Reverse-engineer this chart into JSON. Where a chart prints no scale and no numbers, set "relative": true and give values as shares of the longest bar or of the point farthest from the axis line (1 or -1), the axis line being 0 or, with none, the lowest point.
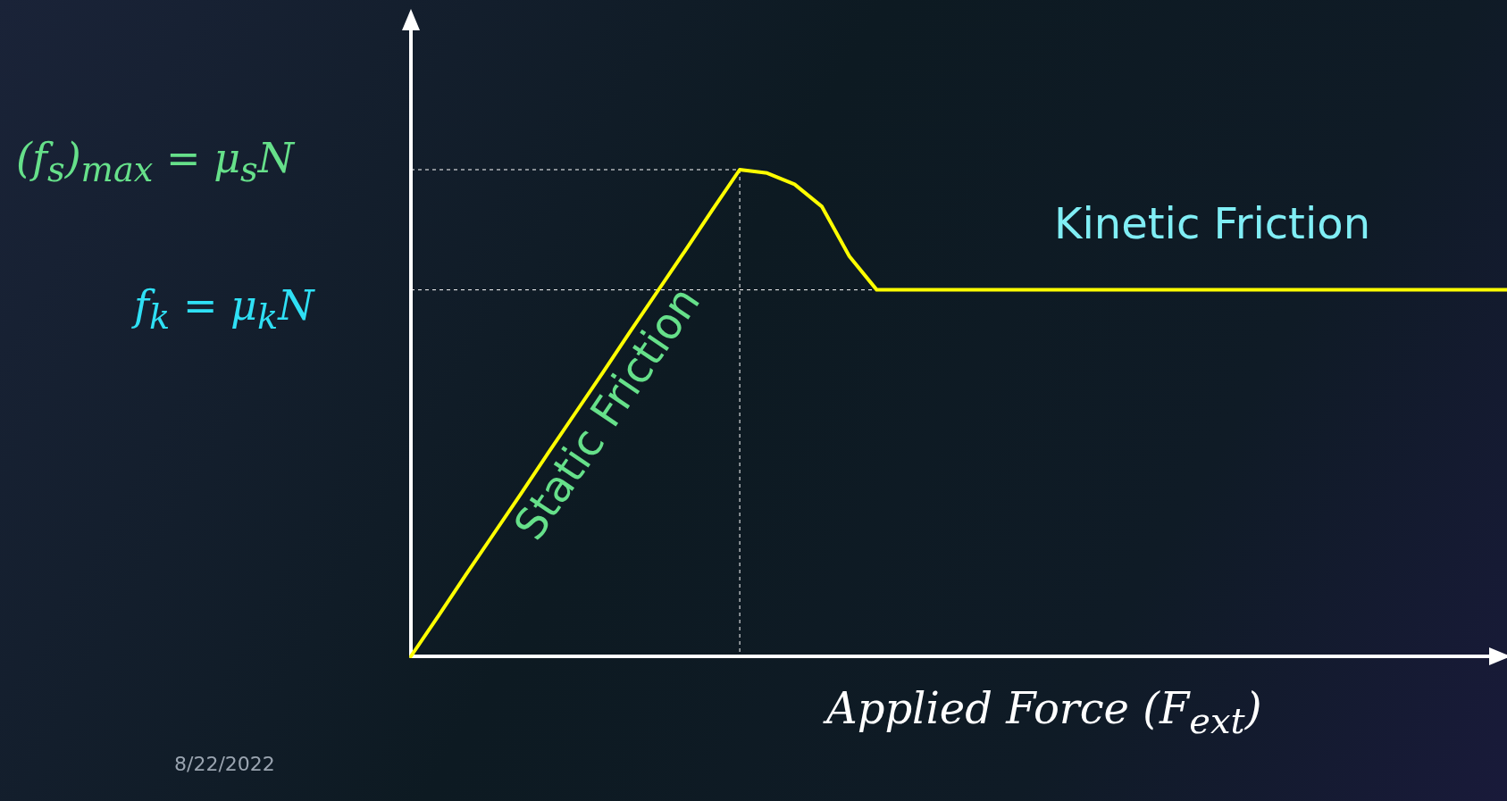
{
  "chart_data": {
    "type": "line",
    "relative": true,
    "tick_labels": false,
    "marker": "none",
    "line_style": "solid",
    "xlabel": "Applied Force (F$_{ext}$)",
    "categories": [
      null,
      null,
      null,
      null,
      null,
      null,
      null,
      null,
      null,
      null,
      null,
      null,
      null,
      null,
      null,
      null,
      null,
      null,
      null,
      null,
      null,
      null,
      null,
      null,
      null,
      null,
      null,
      null,
      null,
      null,
      null,
      null,
      null,
      null,
      null,
      null,
      null,
      null,
      null,
      null,
      null
    ],
    "series": [
      {
        "color": "#ffff00",
        "values": [
          0,
          0.083,
          0.167,
          0.25,
          0.333,
          0.417,
          0.5,
          0.583,
          0.667,
          0.75,
          0.833,
          0.917,
          1,
          0.993,
          0.97,
          0.924,
          0.822,
          0.753,
          0.753,
          0.753,
          0.753,
          0.753,
          0.753,
          0.753,
          0.753,
          0.753,
          0.753,
          0.753,
          0.753,
          0.753,
          0.753,
          0.753,
          0.753,
          0.753,
          0.753,
          0.753,
          0.753,
          0.753,
          0.753,
          0.753,
          0.753
        ]
      }
    ],
    "annotations": [
      "Static Friction",
      "Kinetic Friction",
      "(f$_{s}$)$_{max}$ = μ$_{s}$N",
      "f$_{k}$ = μ$_{k}$N",
      "8/22/2022"
    ]
  }
}
